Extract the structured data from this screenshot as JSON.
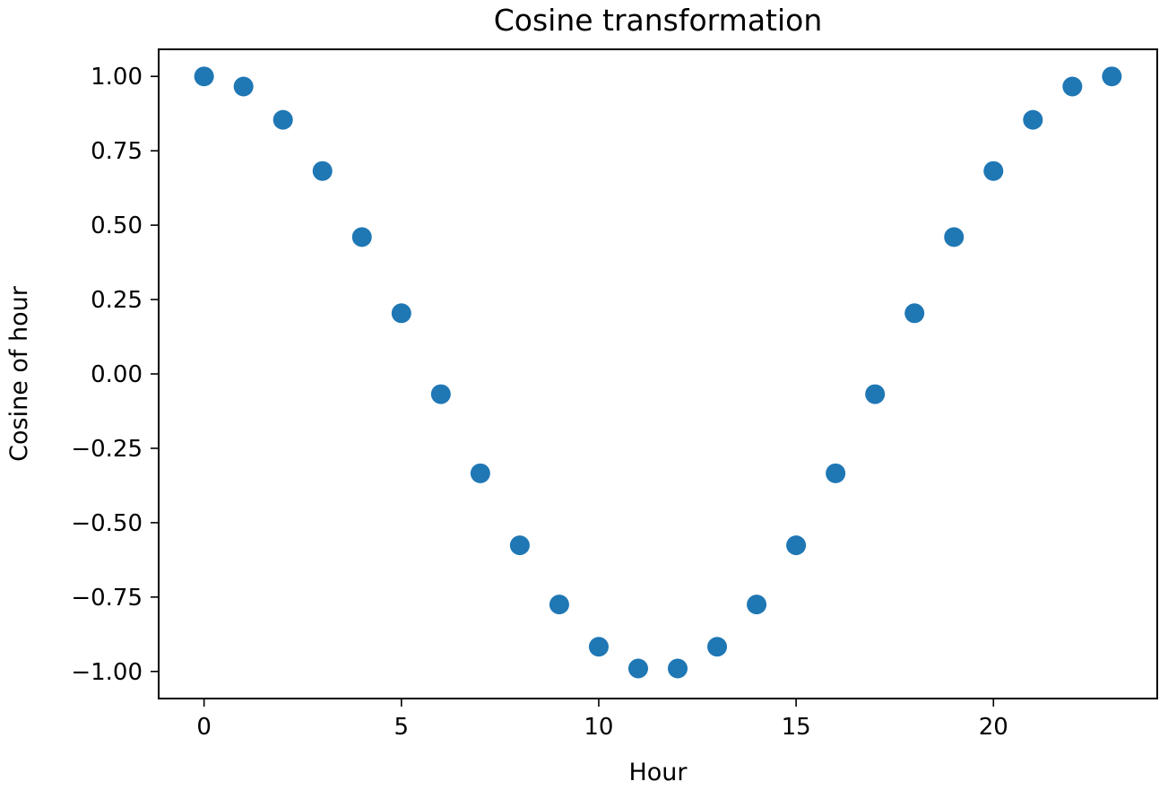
{
  "chart_data": {
    "type": "scatter",
    "title": "Cosine transformation",
    "xlabel": "Hour",
    "ylabel": "Cosine of hour",
    "x": [
      0,
      1,
      2,
      3,
      4,
      5,
      6,
      7,
      8,
      9,
      10,
      11,
      12,
      13,
      14,
      15,
      16,
      17,
      18,
      19,
      20,
      21,
      22,
      23
    ],
    "y": [
      1.0,
      0.966,
      0.854,
      0.682,
      0.46,
      0.204,
      -0.068,
      -0.334,
      -0.576,
      -0.775,
      -0.917,
      -0.99,
      -0.99,
      -0.917,
      -0.775,
      -0.576,
      -0.334,
      -0.068,
      0.204,
      0.46,
      0.682,
      0.854,
      0.966,
      1.0
    ],
    "xlim": [
      -1.15,
      24.15
    ],
    "ylim": [
      -1.091,
      1.091
    ],
    "xticks": [
      0,
      5,
      10,
      15,
      20
    ],
    "xtick_labels": [
      "0",
      "5",
      "10",
      "15",
      "20"
    ],
    "yticks": [
      1.0,
      0.75,
      0.5,
      0.25,
      0.0,
      -0.25,
      -0.5,
      -0.75,
      -1.0
    ],
    "ytick_labels": [
      "1.00",
      "0.75",
      "0.50",
      "0.25",
      "0.00",
      "−0.25",
      "−0.50",
      "−0.75",
      "−1.00"
    ],
    "grid": false,
    "marker_color": "#1f77b4"
  }
}
